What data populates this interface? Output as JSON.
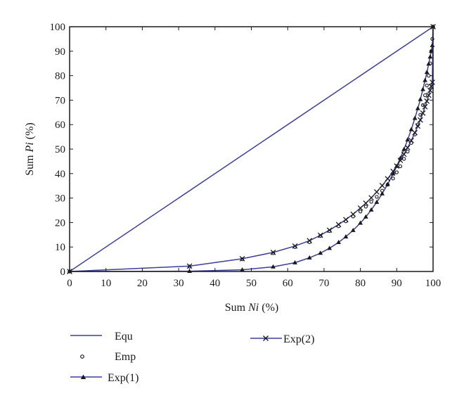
{
  "chart_data": {
    "type": "line",
    "xlabel": {
      "prefix": "Sum ",
      "italic": "Ni",
      "suffix": " (%)"
    },
    "ylabel": {
      "prefix": "Sum ",
      "italic": "Pi",
      "suffix": " (%)"
    },
    "xlim": [
      0,
      100
    ],
    "ylim": [
      0,
      100
    ],
    "xticks": [
      0,
      10,
      20,
      30,
      40,
      50,
      60,
      70,
      80,
      90,
      100
    ],
    "yticks": [
      0,
      10,
      20,
      30,
      40,
      50,
      60,
      70,
      80,
      90,
      100
    ],
    "grid": false,
    "legend_position": "below-plot",
    "colors": {
      "line": "#3a3f9a",
      "marker": "#1a1a1a",
      "frame": "#1a1a1a"
    },
    "series": [
      {
        "name": "Equ",
        "style": "line",
        "x": [
          0,
          100
        ],
        "y": [
          0,
          100
        ]
      },
      {
        "name": "Emp",
        "style": "open-circle",
        "x": [
          0,
          33,
          47.5,
          56,
          62,
          66,
          69,
          71.5,
          74,
          76,
          78,
          80,
          81.5,
          83,
          84.5,
          86,
          87.5,
          89,
          90,
          91,
          92,
          93,
          94,
          95,
          95.8,
          96.5,
          97.2,
          97.8,
          98.3,
          98.8,
          99.2,
          99.5,
          99.8,
          100
        ],
        "y": [
          0,
          2,
          5,
          7.5,
          10,
          12,
          14.5,
          16.5,
          18.5,
          20.5,
          22.5,
          24.5,
          26.5,
          28.5,
          30.5,
          33,
          35.5,
          38,
          40.5,
          43,
          46,
          49,
          52.5,
          56,
          60,
          64,
          68,
          72,
          76,
          80,
          85,
          90,
          95,
          100
        ]
      },
      {
        "name": "Exp(1)",
        "style": "line-triangle",
        "x": [
          0,
          33,
          47.5,
          56,
          62,
          66,
          69,
          71.5,
          74,
          76,
          78,
          80,
          81.5,
          83,
          84.5,
          86,
          87.5,
          89,
          90,
          91,
          92,
          93,
          94,
          95,
          95.8,
          96.5,
          97.2,
          97.8,
          98.3,
          98.8,
          99.2,
          99.5,
          99.8,
          100
        ],
        "y": [
          0,
          0.1,
          0.7,
          1.9,
          3.6,
          5.6,
          7.5,
          9.5,
          11.9,
          14.2,
          16.8,
          19.8,
          22.3,
          25.2,
          28.3,
          31.8,
          35.6,
          39.9,
          43.0,
          46.3,
          49.9,
          53.8,
          58.0,
          62.6,
          66.6,
          70.3,
          74.4,
          78.1,
          81.4,
          84.8,
          87.7,
          90.0,
          92.4,
          100
        ]
      },
      {
        "name": "Exp(2)",
        "style": "line-cross",
        "x": [
          0,
          33,
          47.5,
          56,
          62,
          66,
          69,
          71.5,
          74,
          76,
          78,
          80,
          81.5,
          83,
          84.5,
          86,
          87.5,
          89,
          90,
          91,
          92,
          93,
          94,
          95,
          95.8,
          96.5,
          97.2,
          97.8,
          98.3,
          98.8,
          99.2,
          99.5,
          99.8,
          100
        ],
        "y": [
          0,
          2.2,
          5.2,
          7.8,
          10.4,
          12.6,
          14.8,
          16.9,
          19.2,
          21.2,
          23.4,
          25.9,
          27.9,
          30.1,
          32.5,
          35.1,
          37.9,
          40.9,
          43.1,
          45.4,
          47.9,
          50.6,
          53.5,
          56.7,
          59.4,
          61.9,
          64.7,
          67.3,
          69.6,
          72.0,
          74.0,
          75.6,
          77.3,
          100
        ]
      }
    ]
  }
}
